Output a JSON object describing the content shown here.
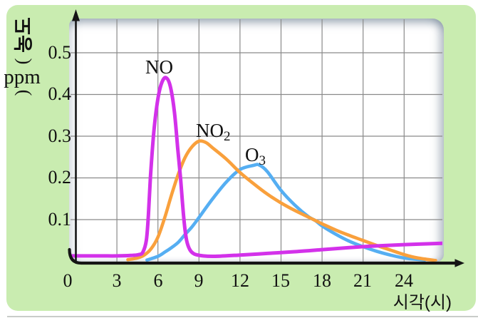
{
  "colors": {
    "panel_green": "#c9ecb0",
    "plot_bg": "#ffffff",
    "grid": "#8a8a8a",
    "axis": "#151515",
    "no_curve": "#d331ea",
    "no2_curve": "#f9a03c",
    "o3_curve": "#55aef2"
  },
  "chart_data": {
    "type": "line",
    "title": "",
    "xlabel": "시각(시)",
    "ylabel": "농도(ppm)",
    "ylabel_parts": {
      "korean": "농도",
      "open": "(",
      "unit": "ppm",
      "close": ")"
    },
    "xlim": [
      0,
      27
    ],
    "ylim": [
      0,
      0.58
    ],
    "grid": true,
    "legend_position": "inline-labels",
    "xticks": [
      0,
      3,
      6,
      9,
      12,
      15,
      18,
      21,
      24
    ],
    "yticks": [
      0.5,
      0.4,
      0.3,
      0.2,
      0.1
    ],
    "xtick_labels": [
      "0",
      "3",
      "6",
      "9",
      "12",
      "15",
      "18",
      "21",
      "24"
    ],
    "ytick_labels": [
      "0.5",
      "0.4",
      "0.3",
      "0.2",
      "0.1"
    ],
    "series": [
      {
        "name": "NO",
        "label": {
          "main": "NO",
          "sub": ""
        },
        "color": "#d331ea",
        "peak": {
          "x": 6.6,
          "y": 0.44
        },
        "points": [
          [
            -0.35,
            0.013
          ],
          [
            1,
            0.013
          ],
          [
            2,
            0.013
          ],
          [
            3,
            0.013
          ],
          [
            4,
            0.014
          ],
          [
            4.6,
            0.016
          ],
          [
            4.9,
            0.022
          ],
          [
            5.15,
            0.05
          ],
          [
            5.3,
            0.11
          ],
          [
            5.45,
            0.2
          ],
          [
            5.7,
            0.31
          ],
          [
            6.0,
            0.39
          ],
          [
            6.3,
            0.43
          ],
          [
            6.6,
            0.44
          ],
          [
            6.9,
            0.42
          ],
          [
            7.2,
            0.36
          ],
          [
            7.45,
            0.27
          ],
          [
            7.65,
            0.2
          ],
          [
            7.9,
            0.1
          ],
          [
            8.1,
            0.05
          ],
          [
            8.35,
            0.027
          ],
          [
            8.7,
            0.017
          ],
          [
            9.3,
            0.013
          ],
          [
            10.2,
            0.012
          ],
          [
            12,
            0.015
          ],
          [
            14,
            0.019
          ],
          [
            16,
            0.023
          ],
          [
            18,
            0.028
          ],
          [
            20,
            0.033
          ],
          [
            22,
            0.037
          ],
          [
            24,
            0.04
          ],
          [
            26.8,
            0.043
          ]
        ]
      },
      {
        "name": "NO2",
        "label": {
          "main": "NO",
          "sub": "2"
        },
        "color": "#f9a03c",
        "peak": {
          "x": 9,
          "y": 0.29
        },
        "points": [
          [
            3.8,
            0.004
          ],
          [
            4.5,
            0.008
          ],
          [
            5,
            0.015
          ],
          [
            5.5,
            0.03
          ],
          [
            6,
            0.058
          ],
          [
            6.5,
            0.105
          ],
          [
            7,
            0.16
          ],
          [
            7.5,
            0.21
          ],
          [
            8,
            0.25
          ],
          [
            8.5,
            0.275
          ],
          [
            9,
            0.288
          ],
          [
            9.5,
            0.285
          ],
          [
            10,
            0.272
          ],
          [
            11,
            0.245
          ],
          [
            12,
            0.213
          ],
          [
            13,
            0.186
          ],
          [
            14,
            0.161
          ],
          [
            15,
            0.14
          ],
          [
            16,
            0.122
          ],
          [
            17,
            0.106
          ],
          [
            17.5,
            0.098
          ],
          [
            18,
            0.09
          ],
          [
            19,
            0.075
          ],
          [
            20,
            0.062
          ],
          [
            21,
            0.05
          ],
          [
            22,
            0.038
          ],
          [
            23,
            0.027
          ],
          [
            24,
            0.016
          ],
          [
            25,
            0.008
          ],
          [
            26.3,
            0.002
          ]
        ]
      },
      {
        "name": "O3",
        "label": {
          "main": "O",
          "sub": "3"
        },
        "color": "#55aef2",
        "peak": {
          "x": 13.2,
          "y": 0.23
        },
        "points": [
          [
            5.2,
            0.003
          ],
          [
            6,
            0.012
          ],
          [
            6.5,
            0.022
          ],
          [
            7,
            0.033
          ],
          [
            7.5,
            0.046
          ],
          [
            8,
            0.065
          ],
          [
            8.5,
            0.083
          ],
          [
            9,
            0.105
          ],
          [
            10,
            0.15
          ],
          [
            11,
            0.19
          ],
          [
            12,
            0.22
          ],
          [
            13,
            0.23
          ],
          [
            13.4,
            0.231
          ],
          [
            14,
            0.215
          ],
          [
            15,
            0.17
          ],
          [
            16,
            0.135
          ],
          [
            17,
            0.107
          ],
          [
            17.5,
            0.098
          ],
          [
            18,
            0.085
          ],
          [
            19,
            0.065
          ],
          [
            20,
            0.048
          ],
          [
            21,
            0.035
          ],
          [
            22,
            0.024
          ],
          [
            23,
            0.015
          ],
          [
            24,
            0.008
          ],
          [
            25.5,
            0.003
          ]
        ]
      }
    ]
  }
}
